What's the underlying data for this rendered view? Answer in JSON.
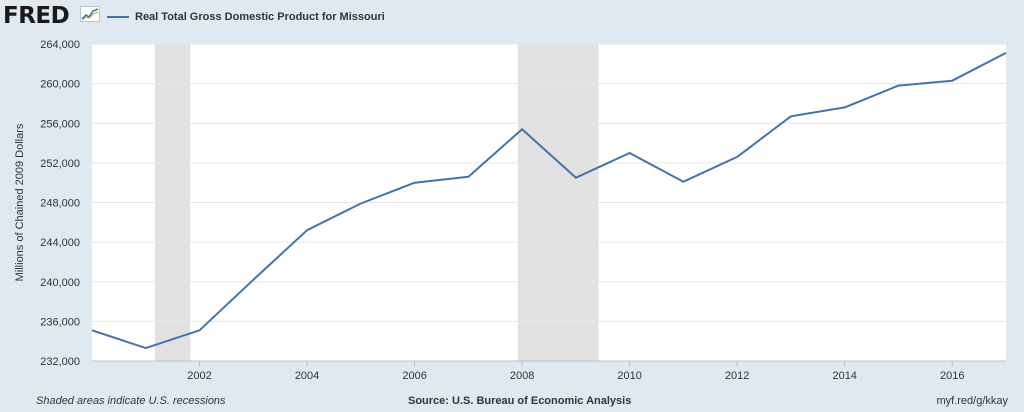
{
  "header": {
    "logo_text": "FRED",
    "logo_icon": "chart-line-icon"
  },
  "footer": {
    "left": "Shaded areas indicate U.S. recessions",
    "center": "Source: U.S. Bureau of Economic Analysis",
    "right": "myf.red/g/kkay"
  },
  "colors": {
    "background": "#e1e9f0",
    "plot_background": "#ffffff",
    "series_line": "#4572a7",
    "recession_shade": "#e1e1e1",
    "gridline": "#e6e6e6"
  },
  "chart_data": {
    "type": "line",
    "title": "",
    "xlabel": "",
    "ylabel": "Millions of Chained 2009 Dollars",
    "xlim": [
      2000,
      2017
    ],
    "ylim": [
      232000,
      264000
    ],
    "x_ticks": [
      2002,
      2004,
      2006,
      2008,
      2010,
      2012,
      2014,
      2016
    ],
    "x_tick_labels": [
      "2002",
      "2004",
      "2006",
      "2008",
      "2010",
      "2012",
      "2014",
      "2016"
    ],
    "y_ticks": [
      232000,
      236000,
      240000,
      244000,
      248000,
      252000,
      256000,
      260000,
      264000
    ],
    "y_tick_labels": [
      "232,000",
      "236,000",
      "240,000",
      "244,000",
      "248,000",
      "252,000",
      "256,000",
      "260,000",
      "264,000"
    ],
    "grid": "horizontal",
    "legend_position": "top-left",
    "recessions": [
      {
        "start": 2001.17,
        "end": 2001.83
      },
      {
        "start": 2007.92,
        "end": 2009.42
      }
    ],
    "series": [
      {
        "name": "Real Total Gross Domestic Product for Missouri",
        "x": [
          2000,
          2001,
          2002,
          2003,
          2004,
          2005,
          2006,
          2007,
          2008,
          2009,
          2010,
          2011,
          2012,
          2013,
          2014,
          2015,
          2016,
          2017
        ],
        "values": [
          235100,
          233300,
          235100,
          240200,
          245200,
          247900,
          250000,
          250600,
          255400,
          250500,
          253000,
          250100,
          252600,
          256700,
          257600,
          259800,
          260300,
          263100
        ]
      }
    ]
  }
}
